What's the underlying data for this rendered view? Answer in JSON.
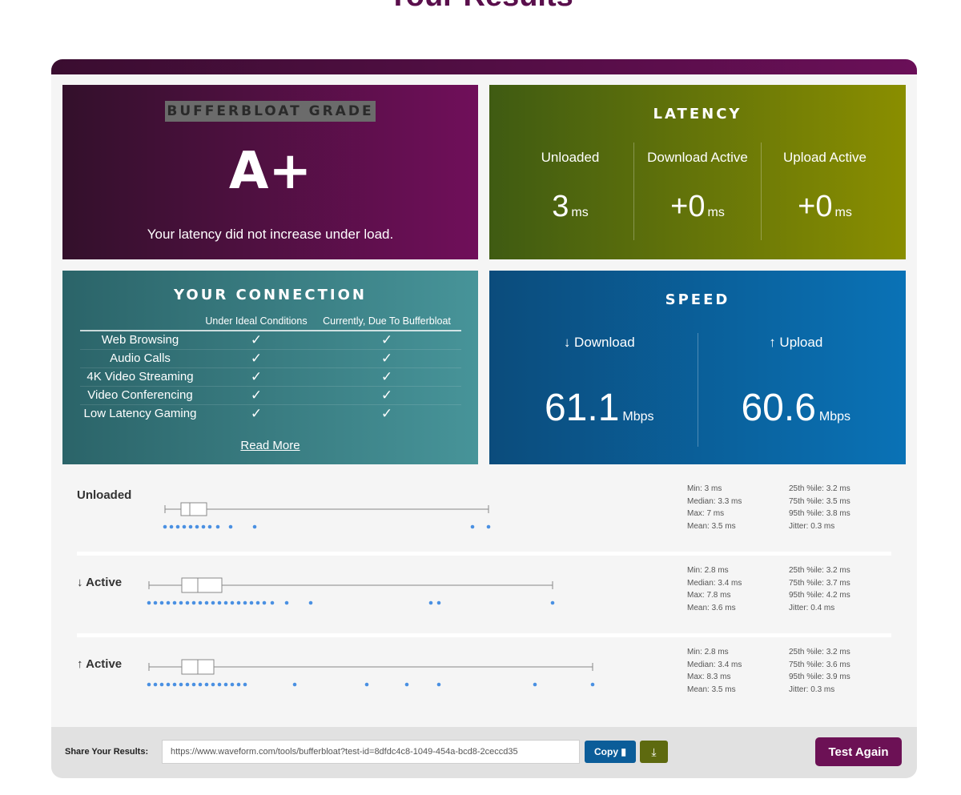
{
  "page_title": "Your Results",
  "grade": {
    "title": "BUFFERBLOAT GRADE",
    "letter": "A+",
    "message": "Your latency did not increase under load."
  },
  "latency": {
    "title": "LATENCY",
    "columns": [
      {
        "label": "Unloaded",
        "value": "3",
        "unit": "ms"
      },
      {
        "label": "Download Active",
        "value": "+0",
        "unit": "ms"
      },
      {
        "label": "Upload Active",
        "value": "+0",
        "unit": "ms"
      }
    ]
  },
  "connection": {
    "title": "YOUR CONNECTION",
    "col_ideal": "Under Ideal Conditions",
    "col_current": "Currently, Due To Bufferbloat",
    "check_glyph": "✓",
    "rows": [
      {
        "name": "Web Browsing"
      },
      {
        "name": "Audio Calls"
      },
      {
        "name": "4K Video Streaming"
      },
      {
        "name": "Video Conferencing"
      },
      {
        "name": "Low Latency Gaming"
      }
    ],
    "read_more": "Read More"
  },
  "speed": {
    "title": "SPEED",
    "download": {
      "label": "↓ Download",
      "value": "61.1",
      "unit": "Mbps"
    },
    "upload": {
      "label": "↑ Upload",
      "value": "60.6",
      "unit": "Mbps"
    }
  },
  "plots": [
    {
      "label": "Unloaded",
      "stats_left": [
        "Min: 3 ms",
        "Median: 3.3 ms",
        "Max: 7 ms",
        "Mean: 3.5 ms"
      ],
      "stats_right": [
        "25th %ile: 3.2 ms",
        "75th %ile: 3.5 ms",
        "95th %ile: 3.8 ms",
        "Jitter: 0.3 ms"
      ]
    },
    {
      "label": "↓ Active",
      "stats_left": [
        "Min: 2.8 ms",
        "Median: 3.4 ms",
        "Max: 7.8 ms",
        "Mean: 3.6 ms"
      ],
      "stats_right": [
        "25th %ile: 3.2 ms",
        "75th %ile: 3.7 ms",
        "95th %ile: 4.2 ms",
        "Jitter: 0.4 ms"
      ]
    },
    {
      "label": "↑ Active",
      "stats_left": [
        "Min: 2.8 ms",
        "Median: 3.4 ms",
        "Max: 8.3 ms",
        "Mean: 3.5 ms"
      ],
      "stats_right": [
        "25th %ile: 3.2 ms",
        "75th %ile: 3.6 ms",
        "95th %ile: 3.9 ms",
        "Jitter: 0.3 ms"
      ]
    }
  ],
  "footer": {
    "share_label": "Share Your Results:",
    "share_url": "https://www.waveform.com/tools/bufferbloat?test-id=8dfdc4c8-1049-454a-bcd8-2ceccd35",
    "copy_label": "Copy",
    "download_icon": "download-icon",
    "test_again_label": "Test Again"
  },
  "colors": {
    "brand_purple": "#6c1155",
    "latency_green": "#7a8300",
    "connection_teal": "#3a7f84",
    "speed_blue": "#0a66a8",
    "dot_blue": "#4a90e2"
  }
}
